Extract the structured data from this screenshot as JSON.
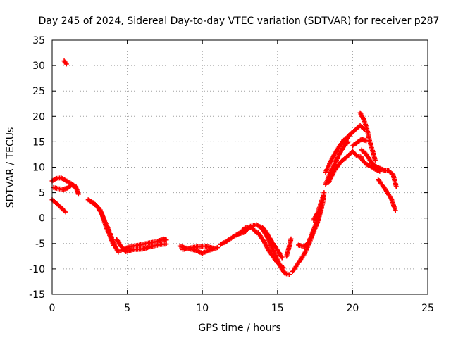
{
  "chart_data": {
    "type": "scatter",
    "title": "Day 245 of 2024, Sidereal Day-to-day VTEC variation (SDTVAR) for receiver p287",
    "xlabel": "GPS time / hours",
    "ylabel": "SDTVAR / TECUs",
    "xlim": [
      0,
      25
    ],
    "ylim": [
      -15,
      35
    ],
    "xticks": [
      0,
      5,
      10,
      15,
      20,
      25
    ],
    "yticks": [
      -15,
      -10,
      -5,
      0,
      5,
      10,
      15,
      20,
      25,
      30,
      35
    ],
    "grid": true,
    "marker": "plus",
    "series": [
      {
        "name": "SDTVAR",
        "color": "#ff0000",
        "segments": [
          [
            [
              0.8,
              30.9
            ],
            [
              0.95,
              30.3
            ]
          ],
          [
            [
              0.0,
              7.3
            ],
            [
              0.3,
              7.8
            ],
            [
              0.6,
              7.9
            ],
            [
              0.9,
              7.4
            ],
            [
              1.2,
              6.9
            ],
            [
              1.5,
              6.3
            ],
            [
              1.7,
              5.3
            ],
            [
              1.75,
              4.7
            ]
          ],
          [
            [
              0.1,
              6.0
            ],
            [
              0.4,
              5.8
            ],
            [
              0.7,
              5.6
            ],
            [
              1.0,
              5.9
            ],
            [
              1.3,
              6.5
            ],
            [
              1.6,
              6.1
            ]
          ],
          [
            [
              0.0,
              3.6
            ],
            [
              0.3,
              2.9
            ],
            [
              0.6,
              2.0
            ],
            [
              0.9,
              1.2
            ]
          ],
          [
            [
              2.4,
              3.6
            ],
            [
              2.8,
              2.9
            ],
            [
              3.2,
              1.6
            ],
            [
              3.5,
              -0.6
            ],
            [
              3.75,
              -2.2
            ],
            [
              4.0,
              -4.2
            ],
            [
              4.2,
              -5.6
            ],
            [
              4.4,
              -6.7
            ]
          ],
          [
            [
              2.6,
              3.2
            ],
            [
              3.0,
              2.3
            ],
            [
              3.3,
              0.9
            ],
            [
              3.6,
              -1.8
            ],
            [
              3.9,
              -3.9
            ],
            [
              4.1,
              -5.4
            ]
          ],
          [
            [
              4.3,
              -4.2
            ],
            [
              4.6,
              -5.6
            ],
            [
              4.9,
              -6.6
            ],
            [
              5.4,
              -6.2
            ],
            [
              6.0,
              -6.1
            ],
            [
              6.6,
              -5.6
            ],
            [
              7.2,
              -5.2
            ],
            [
              7.6,
              -5.1
            ]
          ],
          [
            [
              4.6,
              -6.3
            ],
            [
              5.2,
              -5.6
            ],
            [
              5.8,
              -5.3
            ],
            [
              6.4,
              -4.9
            ],
            [
              7.0,
              -4.6
            ],
            [
              7.4,
              -4.1
            ],
            [
              7.6,
              -4.3
            ]
          ],
          [
            [
              8.5,
              -5.5
            ],
            [
              9.0,
              -6.0
            ],
            [
              9.5,
              -6.3
            ],
            [
              10.0,
              -6.9
            ],
            [
              10.5,
              -6.3
            ],
            [
              11.0,
              -5.8
            ]
          ],
          [
            [
              8.7,
              -6.2
            ],
            [
              9.3,
              -5.8
            ],
            [
              9.8,
              -5.6
            ],
            [
              10.2,
              -5.5
            ],
            [
              10.7,
              -5.9
            ]
          ],
          [
            [
              11.2,
              -5.2
            ],
            [
              11.6,
              -4.6
            ],
            [
              12.0,
              -3.8
            ],
            [
              12.5,
              -2.9
            ],
            [
              12.9,
              -1.8
            ],
            [
              13.3,
              -1.9
            ],
            [
              13.6,
              -2.9
            ]
          ],
          [
            [
              12.3,
              -3.2
            ],
            [
              12.8,
              -2.8
            ],
            [
              13.2,
              -1.6
            ],
            [
              13.6,
              -1.3
            ],
            [
              13.9,
              -1.8
            ],
            [
              14.3,
              -3.6
            ],
            [
              14.6,
              -5.6
            ],
            [
              14.9,
              -7.6
            ],
            [
              15.2,
              -9.6
            ],
            [
              15.5,
              -10.9
            ],
            [
              15.8,
              -11.1
            ]
          ],
          [
            [
              13.7,
              -2.8
            ],
            [
              14.1,
              -4.6
            ],
            [
              14.4,
              -6.3
            ],
            [
              14.7,
              -7.6
            ],
            [
              15.0,
              -8.8
            ],
            [
              15.4,
              -9.8
            ]
          ],
          [
            [
              14.0,
              -1.8
            ],
            [
              14.3,
              -3.0
            ],
            [
              14.7,
              -5.0
            ],
            [
              15.0,
              -6.3
            ],
            [
              15.3,
              -7.8
            ]
          ],
          [
            [
              15.6,
              -7.5
            ],
            [
              15.8,
              -5.4
            ],
            [
              15.9,
              -4.1
            ]
          ],
          [
            [
              16.0,
              -10.5
            ],
            [
              16.4,
              -8.8
            ],
            [
              16.8,
              -7.0
            ],
            [
              17.1,
              -5.0
            ],
            [
              17.4,
              -2.8
            ],
            [
              17.7,
              -0.5
            ],
            [
              17.9,
              1.6
            ],
            [
              18.05,
              3.6
            ],
            [
              18.1,
              5.0
            ]
          ],
          [
            [
              16.4,
              -5.3
            ],
            [
              16.8,
              -5.6
            ],
            [
              17.1,
              -4.6
            ],
            [
              17.5,
              -1.6
            ],
            [
              17.8,
              0.8
            ]
          ],
          [
            [
              17.4,
              -0.4
            ],
            [
              17.7,
              1.2
            ],
            [
              18.0,
              4.0
            ]
          ],
          [
            [
              18.2,
              9.0
            ],
            [
              18.5,
              10.9
            ],
            [
              18.8,
              12.6
            ],
            [
              19.1,
              14.0
            ],
            [
              19.4,
              15.3
            ],
            [
              19.7,
              16.0
            ],
            [
              19.9,
              16.6
            ]
          ],
          [
            [
              18.2,
              6.6
            ],
            [
              18.5,
              8.8
            ],
            [
              18.8,
              10.6
            ],
            [
              19.1,
              12.5
            ],
            [
              19.4,
              14.0
            ],
            [
              19.7,
              15.0
            ]
          ],
          [
            [
              18.4,
              7.0
            ],
            [
              18.8,
              9.4
            ],
            [
              19.2,
              11.0
            ],
            [
              19.6,
              12.0
            ],
            [
              20.0,
              13.1
            ],
            [
              20.3,
              12.2
            ],
            [
              20.6,
              12.0
            ]
          ],
          [
            [
              19.4,
              14.8
            ],
            [
              19.8,
              16.4
            ],
            [
              20.2,
              17.4
            ],
            [
              20.5,
              18.2
            ],
            [
              20.8,
              17.4
            ]
          ],
          [
            [
              20.0,
              14.2
            ],
            [
              20.3,
              14.9
            ],
            [
              20.6,
              15.5
            ],
            [
              20.9,
              15.2
            ]
          ],
          [
            [
              20.5,
              20.7
            ],
            [
              20.75,
              19.3
            ],
            [
              20.95,
              17.6
            ],
            [
              21.15,
              15.0
            ],
            [
              21.35,
              13.0
            ],
            [
              21.5,
              11.4
            ]
          ],
          [
            [
              20.6,
              13.4
            ],
            [
              20.9,
              12.6
            ],
            [
              21.2,
              11.2
            ],
            [
              21.5,
              10.2
            ],
            [
              21.8,
              9.8
            ],
            [
              22.1,
              9.4
            ],
            [
              22.4,
              9.3
            ],
            [
              22.7,
              8.5
            ],
            [
              22.9,
              6.2
            ]
          ],
          [
            [
              20.6,
              11.6
            ],
            [
              20.9,
              10.6
            ],
            [
              21.2,
              10.2
            ],
            [
              21.5,
              9.6
            ],
            [
              21.8,
              9.2
            ]
          ],
          [
            [
              21.7,
              7.6
            ],
            [
              22.0,
              6.4
            ],
            [
              22.3,
              5.1
            ],
            [
              22.6,
              3.6
            ],
            [
              22.85,
              1.5
            ]
          ]
        ]
      }
    ]
  }
}
